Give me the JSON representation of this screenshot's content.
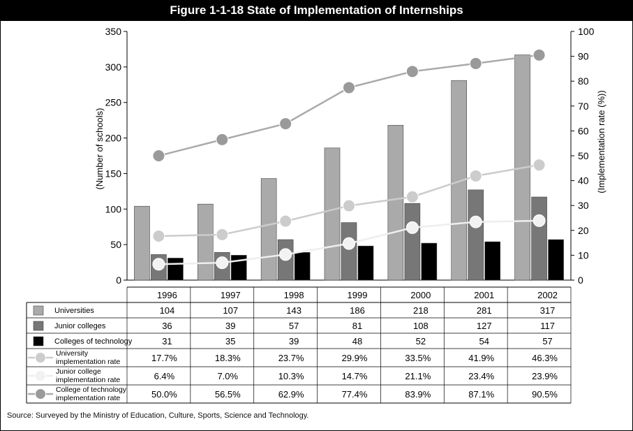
{
  "title": "Figure 1-1-18  State of Implementation of Internships",
  "source": "Source: Surveyed by the Ministry of Education, Culture, Sports, Science and Technology.",
  "chart_data": {
    "type": "bar",
    "categories": [
      "1996",
      "1997",
      "1998",
      "1999",
      "2000",
      "2001",
      "2002"
    ],
    "y_left": {
      "label": "(Number of schools)",
      "range": [
        0,
        350
      ],
      "ticks": [
        0,
        50,
        100,
        150,
        200,
        250,
        300,
        350
      ]
    },
    "y_right": {
      "label": "(Implementation rate (%))",
      "range": [
        0,
        100
      ],
      "ticks": [
        0,
        10,
        20,
        30,
        40,
        50,
        60,
        70,
        80,
        90,
        100
      ]
    },
    "bar_series": [
      {
        "name": "Universities",
        "color": "#aaaaaa",
        "values": [
          104,
          107,
          143,
          186,
          218,
          281,
          317
        ],
        "labels": [
          "104",
          "107",
          "143",
          "186",
          "218",
          "281",
          "317"
        ]
      },
      {
        "name": "Junior colleges",
        "color": "#777777",
        "values": [
          36,
          39,
          57,
          81,
          108,
          127,
          117
        ],
        "labels": [
          "36",
          "39",
          "57",
          "81",
          "108",
          "127",
          "117"
        ]
      },
      {
        "name": "Colleges of technology",
        "color": "#000000",
        "values": [
          31,
          35,
          39,
          48,
          52,
          54,
          57
        ],
        "labels": [
          "31",
          "35",
          "39",
          "48",
          "52",
          "54",
          "57"
        ]
      }
    ],
    "line_series": [
      {
        "name": "University implementation rate",
        "name_lines": [
          "University",
          "implementation rate"
        ],
        "color": "#cccccc",
        "marker_color": "#cccccc",
        "values": [
          17.7,
          18.3,
          23.7,
          29.9,
          33.5,
          41.9,
          46.3
        ],
        "labels": [
          "17.7%",
          "18.3%",
          "23.7%",
          "29.9%",
          "33.5%",
          "41.9%",
          "46.3%"
        ]
      },
      {
        "name": "Junior college implementation rate",
        "name_lines": [
          "Junior college",
          "implementation rate"
        ],
        "color": "#eeeeee",
        "marker_color": "#f2f2f2",
        "values": [
          6.4,
          7.0,
          10.3,
          14.7,
          21.1,
          23.4,
          23.9
        ],
        "labels": [
          "6.4%",
          "7.0%",
          "10.3%",
          "14.7%",
          "21.1%",
          "23.4%",
          "23.9%"
        ]
      },
      {
        "name": "College of technology implementation rate",
        "name_lines": [
          "College of technology",
          "implementation rate"
        ],
        "color": "#aaaaaa",
        "marker_color": "#9a9a9a",
        "values": [
          50.0,
          56.5,
          62.9,
          77.4,
          83.9,
          87.1,
          90.5
        ],
        "labels": [
          "50.0%",
          "56.5%",
          "62.9%",
          "77.4%",
          "83.9%",
          "87.1%",
          "90.5%"
        ]
      }
    ]
  }
}
